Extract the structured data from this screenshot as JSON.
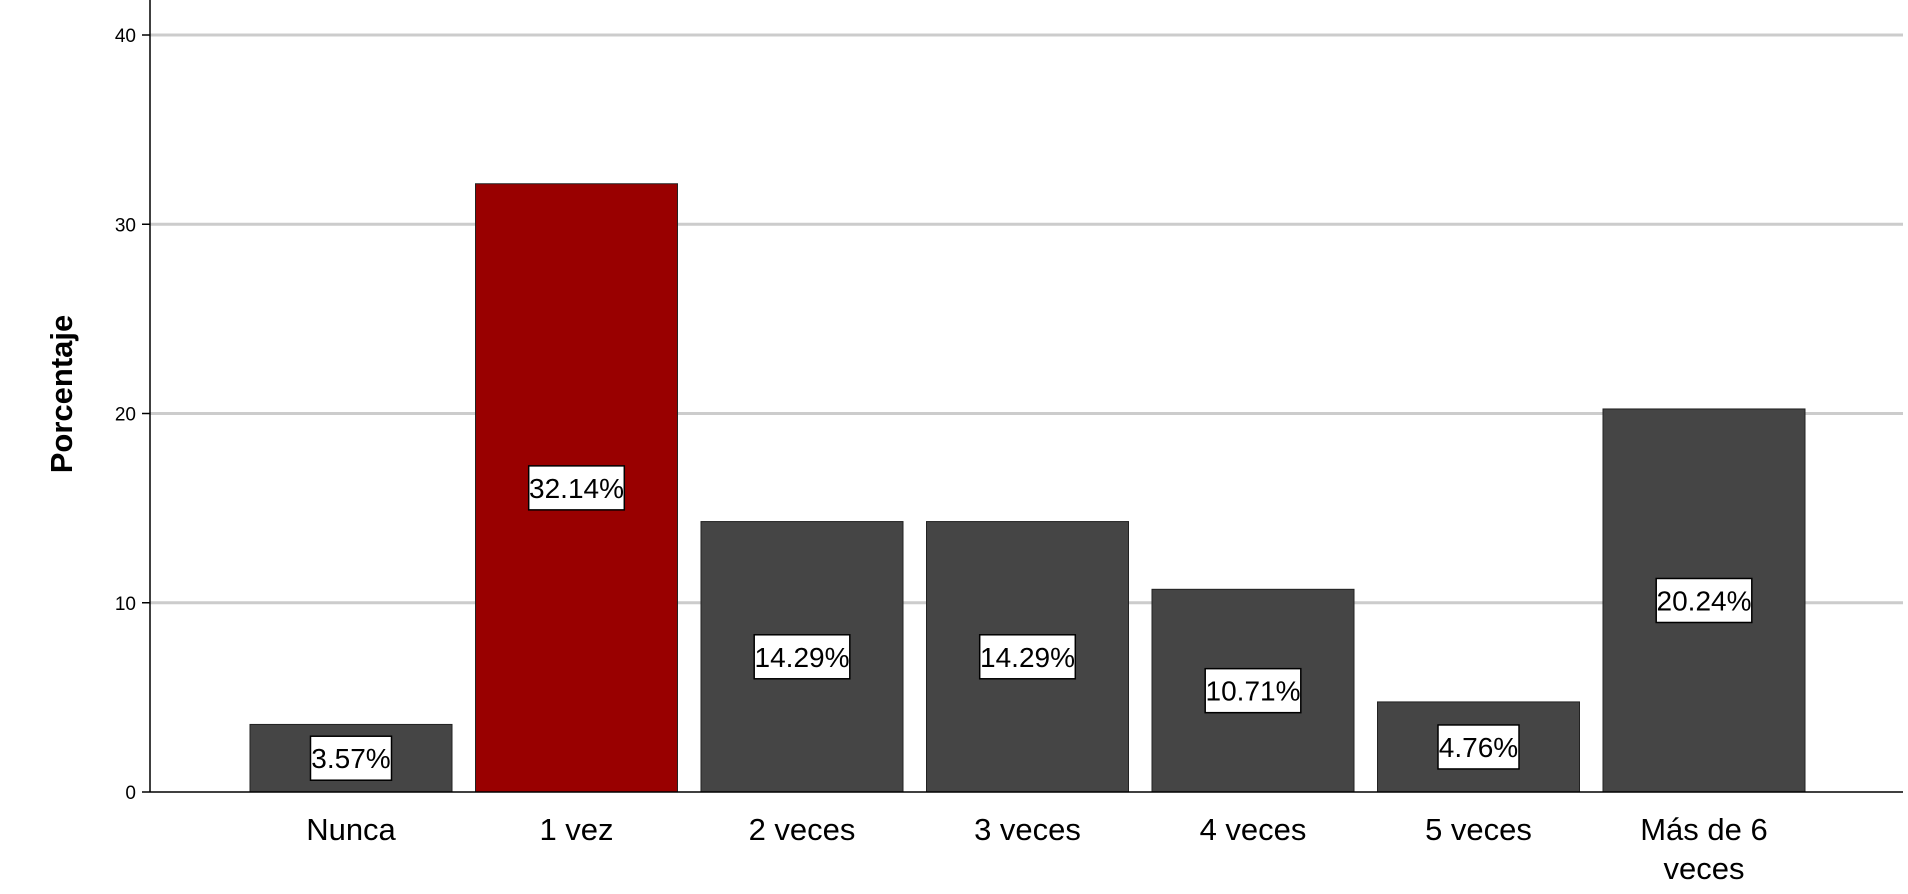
{
  "chart_data": {
    "type": "bar",
    "ylabel": "Porcentaje",
    "ylim": [
      0,
      42
    ],
    "yticks": [
      0,
      10,
      20,
      30,
      40
    ],
    "grid": true,
    "categories": [
      [
        "Nunca"
      ],
      [
        "1 vez"
      ],
      [
        "2 veces"
      ],
      [
        "3 veces"
      ],
      [
        "4 veces"
      ],
      [
        "5 veces"
      ],
      [
        "Más de 6",
        "veces"
      ]
    ],
    "values": [
      3.57,
      32.14,
      14.29,
      14.29,
      10.71,
      4.76,
      20.24
    ],
    "data_labels": [
      "3.57%",
      "32.14%",
      "14.29%",
      "14.29%",
      "10.71%",
      "4.76%",
      "20.24%"
    ],
    "highlight_index": 1,
    "colors": {
      "bar": "#454545",
      "highlight": "#990000",
      "grid": "#cccccc",
      "axis": "#000000",
      "label_box": "#ffffff"
    }
  }
}
